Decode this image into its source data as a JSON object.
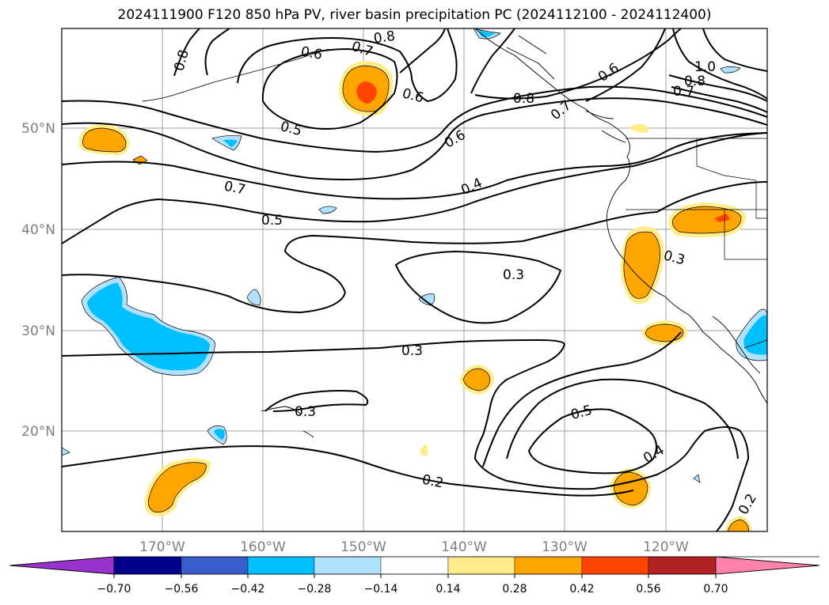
{
  "title": "2024111900 F120 850 hPa PV, river basin precipitation PC (2024112100 - 2024112400)",
  "latitude_labels": [
    "50°N",
    "40°N",
    "30°N",
    "20°N"
  ],
  "longitude_labels": [
    "170°W",
    "160°W",
    "150°W",
    "140°W",
    "130°W",
    "120°W"
  ],
  "colorbar": {
    "colors": [
      "#9a32cd",
      "#00008b",
      "#3a5fcd",
      "#00bfff",
      "#b0e2ff",
      "#ffffff",
      "#ffec8b",
      "#ffa500",
      "#ff4500",
      "#b22222",
      "#ff82ab"
    ],
    "tick_labels": [
      "−0.70",
      "−0.56",
      "−0.42",
      "−0.28",
      "−0.14",
      "0.14",
      "0.28",
      "0.42",
      "0.56",
      "0.70"
    ]
  },
  "contour_labels": [
    {
      "text": "0.8"
    },
    {
      "text": "0.6"
    },
    {
      "text": "0.7"
    },
    {
      "text": "0.8"
    },
    {
      "text": "0.6"
    },
    {
      "text": "0.5"
    },
    {
      "text": "0.6"
    },
    {
      "text": "0.8"
    },
    {
      "text": "0.7"
    },
    {
      "text": "0.6"
    },
    {
      "text": "1.0"
    },
    {
      "text": "0.8"
    },
    {
      "text": "0.7"
    },
    {
      "text": "0.7"
    },
    {
      "text": "0.4"
    },
    {
      "text": "0.5"
    },
    {
      "text": "0.3"
    },
    {
      "text": "0.3"
    },
    {
      "text": "0.3"
    },
    {
      "text": "0.3"
    },
    {
      "text": "0.5"
    },
    {
      "text": "0.4"
    },
    {
      "text": "0.2"
    },
    {
      "text": "0.2"
    }
  ]
}
